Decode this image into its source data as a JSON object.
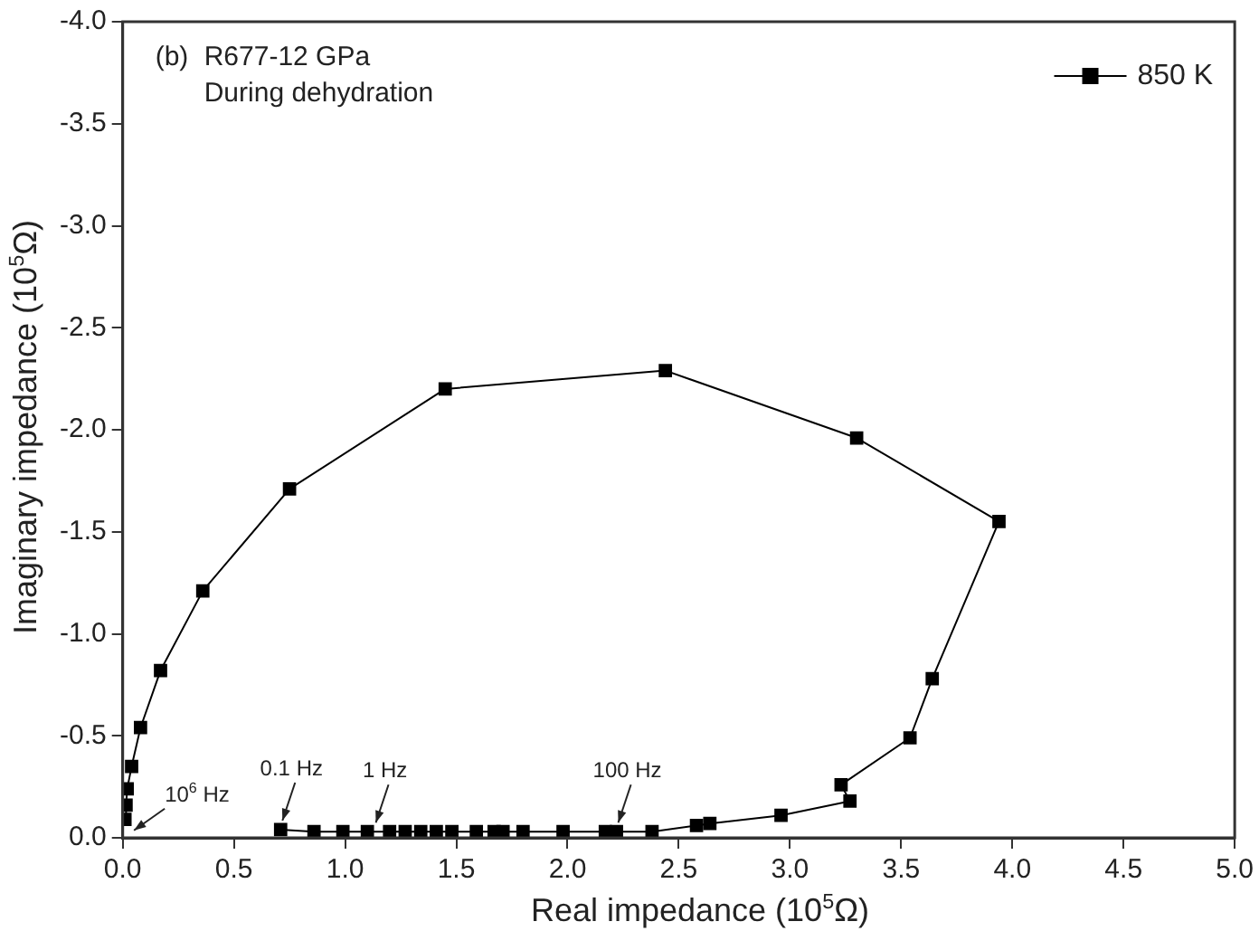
{
  "chart_data": {
    "type": "line",
    "xlabel": "Real impedance (10$^{5}$Ω)",
    "ylabel": "Imaginary impedance (10$^{5}$Ω)",
    "annotations": [
      "(b) R677-12 GPa",
      "During dehydration",
      {
        "text": "10$^{6}$ Hz",
        "x": 0.01,
        "y": -0.09
      },
      {
        "text": "0.1 Hz",
        "x": 0.71,
        "y": -0.04
      },
      {
        "text": "1 Hz",
        "x": 1.13,
        "y": -0.03
      },
      {
        "text": "100 Hz",
        "x": 2.22,
        "y": -0.03
      }
    ],
    "series": [
      {
        "name": "850 K",
        "color": "#000000",
        "x": [
          0.01,
          0.015,
          0.02,
          0.04,
          0.08,
          0.17,
          0.36,
          0.75,
          1.45,
          2.44,
          3.3,
          3.94,
          3.64,
          3.54,
          3.23,
          3.27,
          2.96,
          2.64,
          2.58,
          2.38,
          2.22,
          2.17,
          1.98,
          1.8,
          1.71,
          1.67,
          1.59,
          1.48,
          1.41,
          1.34,
          1.27,
          1.2,
          1.1,
          0.99,
          0.86,
          0.71
        ],
        "values": [
          -0.09,
          -0.16,
          -0.24,
          -0.35,
          -0.54,
          -0.82,
          -1.21,
          -1.71,
          -2.2,
          -2.29,
          -1.96,
          -1.55,
          -0.78,
          -0.49,
          -0.26,
          -0.18,
          -0.11,
          -0.07,
          -0.06,
          -0.03,
          -0.03,
          -0.03,
          -0.03,
          -0.03,
          -0.03,
          -0.03,
          -0.03,
          -0.03,
          -0.03,
          -0.03,
          -0.03,
          -0.03,
          -0.03,
          -0.03,
          -0.03,
          -0.04
        ]
      }
    ],
    "xlim": [
      0,
      5
    ],
    "xticks": [
      {
        "value": 0,
        "label": "0.0"
      },
      {
        "value": 0.5,
        "label": "0.5"
      },
      {
        "value": 1,
        "label": "1.0"
      },
      {
        "value": 1.5,
        "label": "1.5"
      },
      {
        "value": 2,
        "label": "2.0"
      },
      {
        "value": 2.5,
        "label": "2.5"
      },
      {
        "value": 3,
        "label": "3.0"
      },
      {
        "value": 3.5,
        "label": "3.5"
      },
      {
        "value": 4,
        "label": "4.0"
      },
      {
        "value": 4.5,
        "label": "4.5"
      },
      {
        "value": 5,
        "label": "5.0"
      }
    ],
    "ylim": [
      0,
      -4
    ],
    "yticks": [
      {
        "value": 0,
        "label": "0.0"
      },
      {
        "value": -0.5,
        "label": "-0.5"
      },
      {
        "value": -1,
        "label": "-1.0"
      },
      {
        "value": -1.5,
        "label": "-1.5"
      },
      {
        "value": -2,
        "label": "-2.0"
      },
      {
        "value": -2.5,
        "label": "-2.5"
      },
      {
        "value": -3,
        "label": "-3.0"
      },
      {
        "value": -3.5,
        "label": "-3.5"
      },
      {
        "value": -4,
        "label": "-4.0"
      }
    ],
    "grid": false,
    "legend": "top right",
    "marker": "square",
    "line_style": "solid"
  }
}
